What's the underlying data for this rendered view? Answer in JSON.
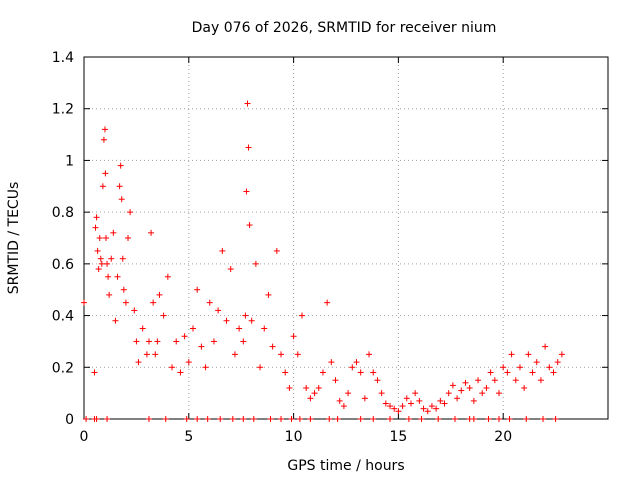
{
  "chart_data": {
    "type": "scatter",
    "title": "Day 076 of 2026, SRMTID for receiver nium",
    "xlabel": "GPS time / hours",
    "ylabel": "SRMTID / TECUs",
    "xlim": [
      0,
      25
    ],
    "ylim": [
      0,
      1.4
    ],
    "xticks": [
      "0",
      "5",
      "10",
      "15",
      "20"
    ],
    "yticks": [
      "0",
      "0.2",
      "0.4",
      "0.6",
      "0.8",
      "1",
      "1.2",
      "1.4"
    ],
    "grid": true,
    "marker": "+",
    "color": "#ff0000",
    "series": [
      {
        "name": "SRMTID",
        "x": [
          0.0,
          0.5,
          0.55,
          0.6,
          0.65,
          0.7,
          0.75,
          0.8,
          0.85,
          0.9,
          0.95,
          1.0,
          1.02,
          1.05,
          1.1,
          1.15,
          1.2,
          1.3,
          1.4,
          1.5,
          1.6,
          1.7,
          1.75,
          1.8,
          1.85,
          1.9,
          2.0,
          2.1,
          2.2,
          2.4,
          2.5,
          2.6,
          2.8,
          3.0,
          3.1,
          3.2,
          3.3,
          3.4,
          3.5,
          3.6,
          3.8,
          4.0,
          4.2,
          4.4,
          4.6,
          4.8,
          5.0,
          5.2,
          5.4,
          5.6,
          5.8,
          6.0,
          6.2,
          6.4,
          6.6,
          6.8,
          7.0,
          7.2,
          7.4,
          7.6,
          7.7,
          7.75,
          7.8,
          7.85,
          7.9,
          8.0,
          8.2,
          8.4,
          8.6,
          8.8,
          9.0,
          9.2,
          9.4,
          9.6,
          9.8,
          10.0,
          10.2,
          10.4,
          10.6,
          10.8,
          11.0,
          11.2,
          11.4,
          11.6,
          11.8,
          12.0,
          12.2,
          12.4,
          12.6,
          12.8,
          13.0,
          13.2,
          13.4,
          13.6,
          13.8,
          14.0,
          14.2,
          14.4,
          14.6,
          14.8,
          15.0,
          15.2,
          15.4,
          15.6,
          15.8,
          16.0,
          16.2,
          16.4,
          16.6,
          16.8,
          17.0,
          17.2,
          17.4,
          17.6,
          17.8,
          18.0,
          18.2,
          18.4,
          18.6,
          18.8,
          19.0,
          19.2,
          19.4,
          19.6,
          19.8,
          20.0,
          20.2,
          20.4,
          20.6,
          20.8,
          21.0,
          21.2,
          21.4,
          21.6,
          21.8,
          22.0,
          22.2,
          22.4,
          22.6,
          22.8,
          0.1,
          0.5,
          0.6,
          1.1,
          3.1,
          3.9,
          4.9,
          5.4,
          5.9,
          6.5,
          7.1,
          7.6,
          8.1,
          8.9,
          9.4,
          9.9,
          10.3,
          10.8,
          11.7,
          12.1,
          13.2,
          13.8,
          14.6,
          15.5,
          16.1,
          16.9,
          17.7,
          18.4,
          18.6,
          19.3,
          19.8,
          20.3,
          21.1,
          21.9,
          22.5
        ],
        "y": [
          0.45,
          0.18,
          0.74,
          0.78,
          0.65,
          0.58,
          0.7,
          0.62,
          0.6,
          0.9,
          1.08,
          1.12,
          0.95,
          0.7,
          0.6,
          0.55,
          0.48,
          0.62,
          0.72,
          0.38,
          0.55,
          0.9,
          0.98,
          0.85,
          0.62,
          0.5,
          0.45,
          0.7,
          0.8,
          0.42,
          0.3,
          0.22,
          0.35,
          0.25,
          0.3,
          0.72,
          0.45,
          0.25,
          0.3,
          0.48,
          0.4,
          0.55,
          0.2,
          0.3,
          0.18,
          0.32,
          0.22,
          0.35,
          0.5,
          0.28,
          0.2,
          0.45,
          0.3,
          0.42,
          0.65,
          0.38,
          0.58,
          0.25,
          0.35,
          0.3,
          0.4,
          0.88,
          1.22,
          1.05,
          0.75,
          0.38,
          0.6,
          0.2,
          0.35,
          0.48,
          0.28,
          0.65,
          0.25,
          0.18,
          0.12,
          0.32,
          0.25,
          0.4,
          0.12,
          0.08,
          0.1,
          0.12,
          0.18,
          0.45,
          0.22,
          0.15,
          0.07,
          0.05,
          0.1,
          0.2,
          0.22,
          0.18,
          0.08,
          0.25,
          0.18,
          0.15,
          0.1,
          0.06,
          0.05,
          0.04,
          0.03,
          0.05,
          0.08,
          0.06,
          0.1,
          0.07,
          0.04,
          0.03,
          0.05,
          0.04,
          0.07,
          0.06,
          0.1,
          0.13,
          0.08,
          0.11,
          0.14,
          0.12,
          0.07,
          0.15,
          0.1,
          0.12,
          0.18,
          0.15,
          0.1,
          0.2,
          0.18,
          0.25,
          0.15,
          0.2,
          0.12,
          0.25,
          0.18,
          0.22,
          0.15,
          0.28,
          0.2,
          0.18,
          0.22,
          0.25,
          0.0,
          0.0,
          0.0,
          0.0,
          0.0,
          0.0,
          0.0,
          0.0,
          0.0,
          0.0,
          0.0,
          0.0,
          0.0,
          0.0,
          0.0,
          0.0,
          0.0,
          0.0,
          0.0,
          0.0,
          0.0,
          0.0,
          0.0,
          0.0,
          0.0,
          0.0,
          0.0,
          0.0,
          0.0,
          0.0,
          0.0,
          0.0,
          0.0,
          0.0,
          0.0
        ]
      }
    ]
  }
}
